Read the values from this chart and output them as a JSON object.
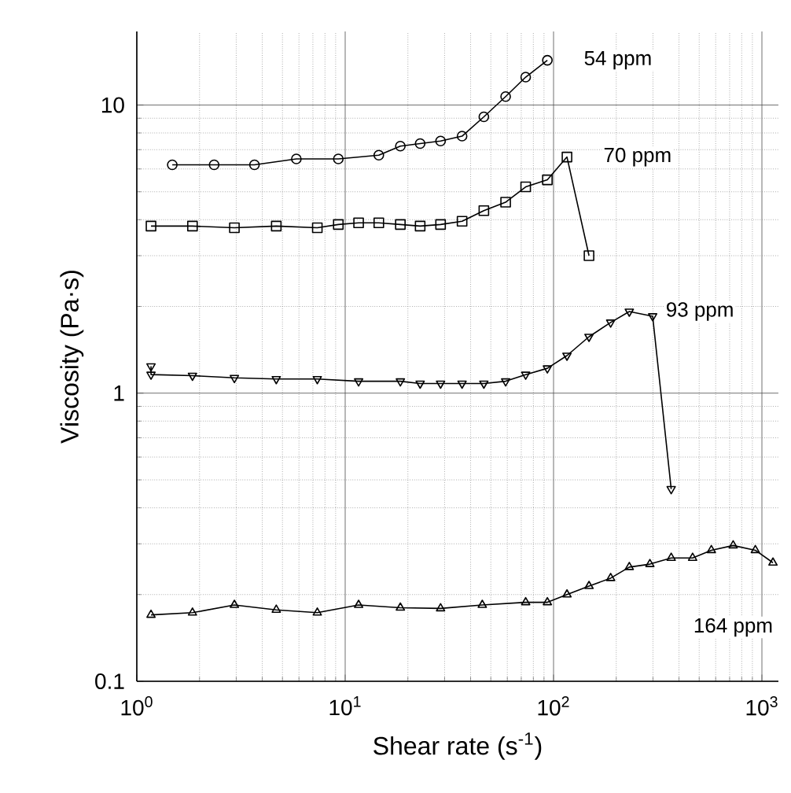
{
  "chart_data": {
    "type": "line",
    "xlabel": "Shear rate (s$^{-1}$)",
    "ylabel": "Viscosity (Pa·s)",
    "log": "xy",
    "grid": true,
    "line_style": "solid",
    "xlim": [
      1,
      1200
    ],
    "ylim": [
      0.1,
      18
    ],
    "xticks": [
      {
        "value": 1,
        "label": "10$^{0}$"
      },
      {
        "value": 10,
        "label": "10$^{1}$"
      },
      {
        "value": 100,
        "label": "10$^{2}$"
      },
      {
        "value": 1000,
        "label": "10$^{3}$"
      }
    ],
    "yticks": [
      0.1,
      1,
      10
    ],
    "series": [
      {
        "name": "54 ppm",
        "color": "#000000",
        "marker": "circle",
        "x": [
          1.48,
          2.35,
          3.67,
          5.83,
          9.27,
          14.5,
          18.4,
          22.9,
          28.7,
          36.4,
          46.3,
          58.9,
          73.5,
          93.4
        ],
        "values": [
          6.2,
          6.2,
          6.2,
          6.5,
          6.5,
          6.7,
          7.2,
          7.35,
          7.5,
          7.8,
          9.1,
          10.7,
          12.5,
          14.3
        ]
      },
      {
        "name": "70 ppm",
        "color": "#000000",
        "marker": "square",
        "x": [
          1.17,
          1.85,
          2.94,
          4.67,
          7.35,
          9.27,
          11.6,
          14.5,
          18.4,
          22.9,
          28.7,
          36.4,
          46.3,
          58.9,
          73.5,
          93.4,
          116,
          148
        ],
        "values": [
          3.8,
          3.8,
          3.75,
          3.8,
          3.75,
          3.85,
          3.9,
          3.9,
          3.85,
          3.8,
          3.85,
          3.95,
          4.3,
          4.6,
          5.2,
          5.5,
          6.6,
          3.0
        ]
      },
      {
        "name": "93 ppm",
        "color": "#000000",
        "marker": "triangle down",
        "x": [
          1.17,
          1.17,
          1.85,
          2.94,
          4.67,
          7.35,
          11.6,
          18.4,
          22.9,
          28.7,
          36.4,
          46.3,
          58.9,
          73.5,
          93.4,
          116,
          148,
          188,
          231,
          299,
          367
        ],
        "values": [
          1.24,
          1.16,
          1.15,
          1.13,
          1.12,
          1.12,
          1.1,
          1.1,
          1.08,
          1.08,
          1.08,
          1.08,
          1.1,
          1.16,
          1.22,
          1.35,
          1.57,
          1.76,
          1.92,
          1.85,
          0.465
        ]
      },
      {
        "name": "164 ppm",
        "color": "#000000",
        "marker": "triangle",
        "x": [
          1.17,
          1.85,
          2.94,
          4.67,
          7.35,
          11.6,
          18.4,
          28.7,
          45.5,
          73.5,
          93.4,
          116,
          148,
          188,
          231,
          290,
          367,
          465,
          572,
          728,
          930,
          1130
        ],
        "values": [
          0.17,
          0.173,
          0.184,
          0.177,
          0.173,
          0.184,
          0.18,
          0.179,
          0.184,
          0.188,
          0.188,
          0.2,
          0.214,
          0.228,
          0.249,
          0.255,
          0.268,
          0.268,
          0.285,
          0.296,
          0.285,
          0.258
        ]
      }
    ]
  }
}
